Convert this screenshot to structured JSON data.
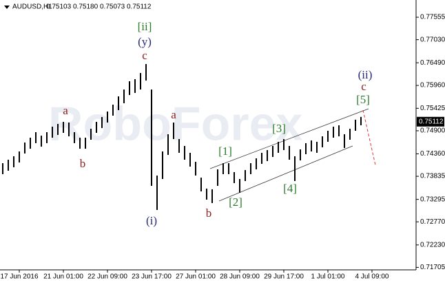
{
  "chart_data": {
    "type": "hilo",
    "header": {
      "symbol": "AUDUSD,H1",
      "values": [
        "0.75103",
        "0.75180",
        "0.75073",
        "0.75112"
      ]
    },
    "watermark": "RoboForex",
    "color": "#000000",
    "high": [
      0.74142,
      0.74223,
      0.74303,
      0.74416,
      0.74625,
      0.74738,
      0.74867,
      0.74786,
      0.74867,
      0.74996,
      0.7506,
      0.75108,
      0.75092,
      0.74867,
      0.74738,
      0.74738,
      0.74947,
      0.75108,
      0.75221,
      0.7535,
      0.75511,
      0.75704,
      0.75865,
      0.76058,
      0.76107,
      0.76251,
      0.76461,
      0.75865,
      0.73853,
      0.74416,
      0.74819,
      0.75092,
      0.74706,
      0.74545,
      0.74384,
      0.74174,
      0.73804,
      0.73547,
      0.73531,
      0.73997,
      0.74142,
      0.74142,
      0.73933,
      0.73772,
      0.73981,
      0.74142,
      0.74255,
      0.74384,
      0.74448,
      0.74545,
      0.74642,
      0.74706,
      0.74545,
      0.74303,
      0.74464,
      0.7461,
      0.74674,
      0.74642,
      0.7477,
      0.74899,
      0.74996,
      0.75028,
      0.74819,
      0.74947,
      0.75159,
      0.75224
    ],
    "low": [
      0.73885,
      0.73965,
      0.74046,
      0.74158,
      0.74368,
      0.7448,
      0.7461,
      0.74529,
      0.7461,
      0.74738,
      0.74802,
      0.74851,
      0.7477,
      0.7461,
      0.7448,
      0.7448,
      0.7469,
      0.74851,
      0.74963,
      0.75092,
      0.75253,
      0.75382,
      0.75543,
      0.75736,
      0.75785,
      0.75865,
      0.76074,
      0.73611,
      0.73048,
      0.73772,
      0.74335,
      0.74706,
      0.74384,
      0.74223,
      0.74062,
      0.73853,
      0.73482,
      0.73289,
      0.73209,
      0.73611,
      0.73885,
      0.73885,
      0.73675,
      0.7345,
      0.73724,
      0.73885,
      0.73997,
      0.74126,
      0.74191,
      0.74287,
      0.74384,
      0.74448,
      0.74223,
      0.73724,
      0.74207,
      0.74352,
      0.74416,
      0.74384,
      0.74513,
      0.74642,
      0.74738,
      0.7477,
      0.74497,
      0.7469,
      0.74899,
      0.75028
    ],
    "xlim": [
      -0.5,
      75
    ],
    "xticks": [
      {
        "value": 3,
        "label": "17 Jun 2016"
      },
      {
        "value": 11,
        "label": "21 Jun 01:00"
      },
      {
        "value": 19,
        "label": "22 Jun 09:00"
      },
      {
        "value": 27,
        "label": "23 Jun 17:00"
      },
      {
        "value": 35,
        "label": "27 Jun 01:00"
      },
      {
        "value": 43,
        "label": "28 Jun 09:00"
      },
      {
        "value": 51,
        "label": "29 Jun 17:00"
      },
      {
        "value": 59,
        "label": "1 Jul 01:00"
      },
      {
        "value": 67,
        "label": "4 Jul 09:00"
      }
    ],
    "ylim": [
      0.71647,
      0.77958
    ],
    "yticks": [
      0.77555,
      {
        "value": 0.7703,
        "label": "0.77030"
      },
      {
        "value": 0.7649,
        "label": "0.76490"
      },
      {
        "value": 0.7596,
        "label": "0.75960"
      },
      0.75425,
      {
        "value": 0.749,
        "label": "0.74900"
      },
      {
        "value": 0.7436,
        "label": "0.74360"
      },
      0.73835,
      0.73295,
      {
        "value": 0.7277,
        "label": "0.72770"
      },
      {
        "value": 0.7223,
        "label": "0.72230"
      },
      0.71705
    ],
    "last_price": 0.75112,
    "annotations": [
      "[ii]",
      "(y)",
      "c",
      "a",
      "b",
      "a",
      "(i)",
      "b",
      "[1]",
      "[2]",
      "[3]",
      "[4]",
      "[5]",
      "c",
      "(ii)"
    ]
  }
}
